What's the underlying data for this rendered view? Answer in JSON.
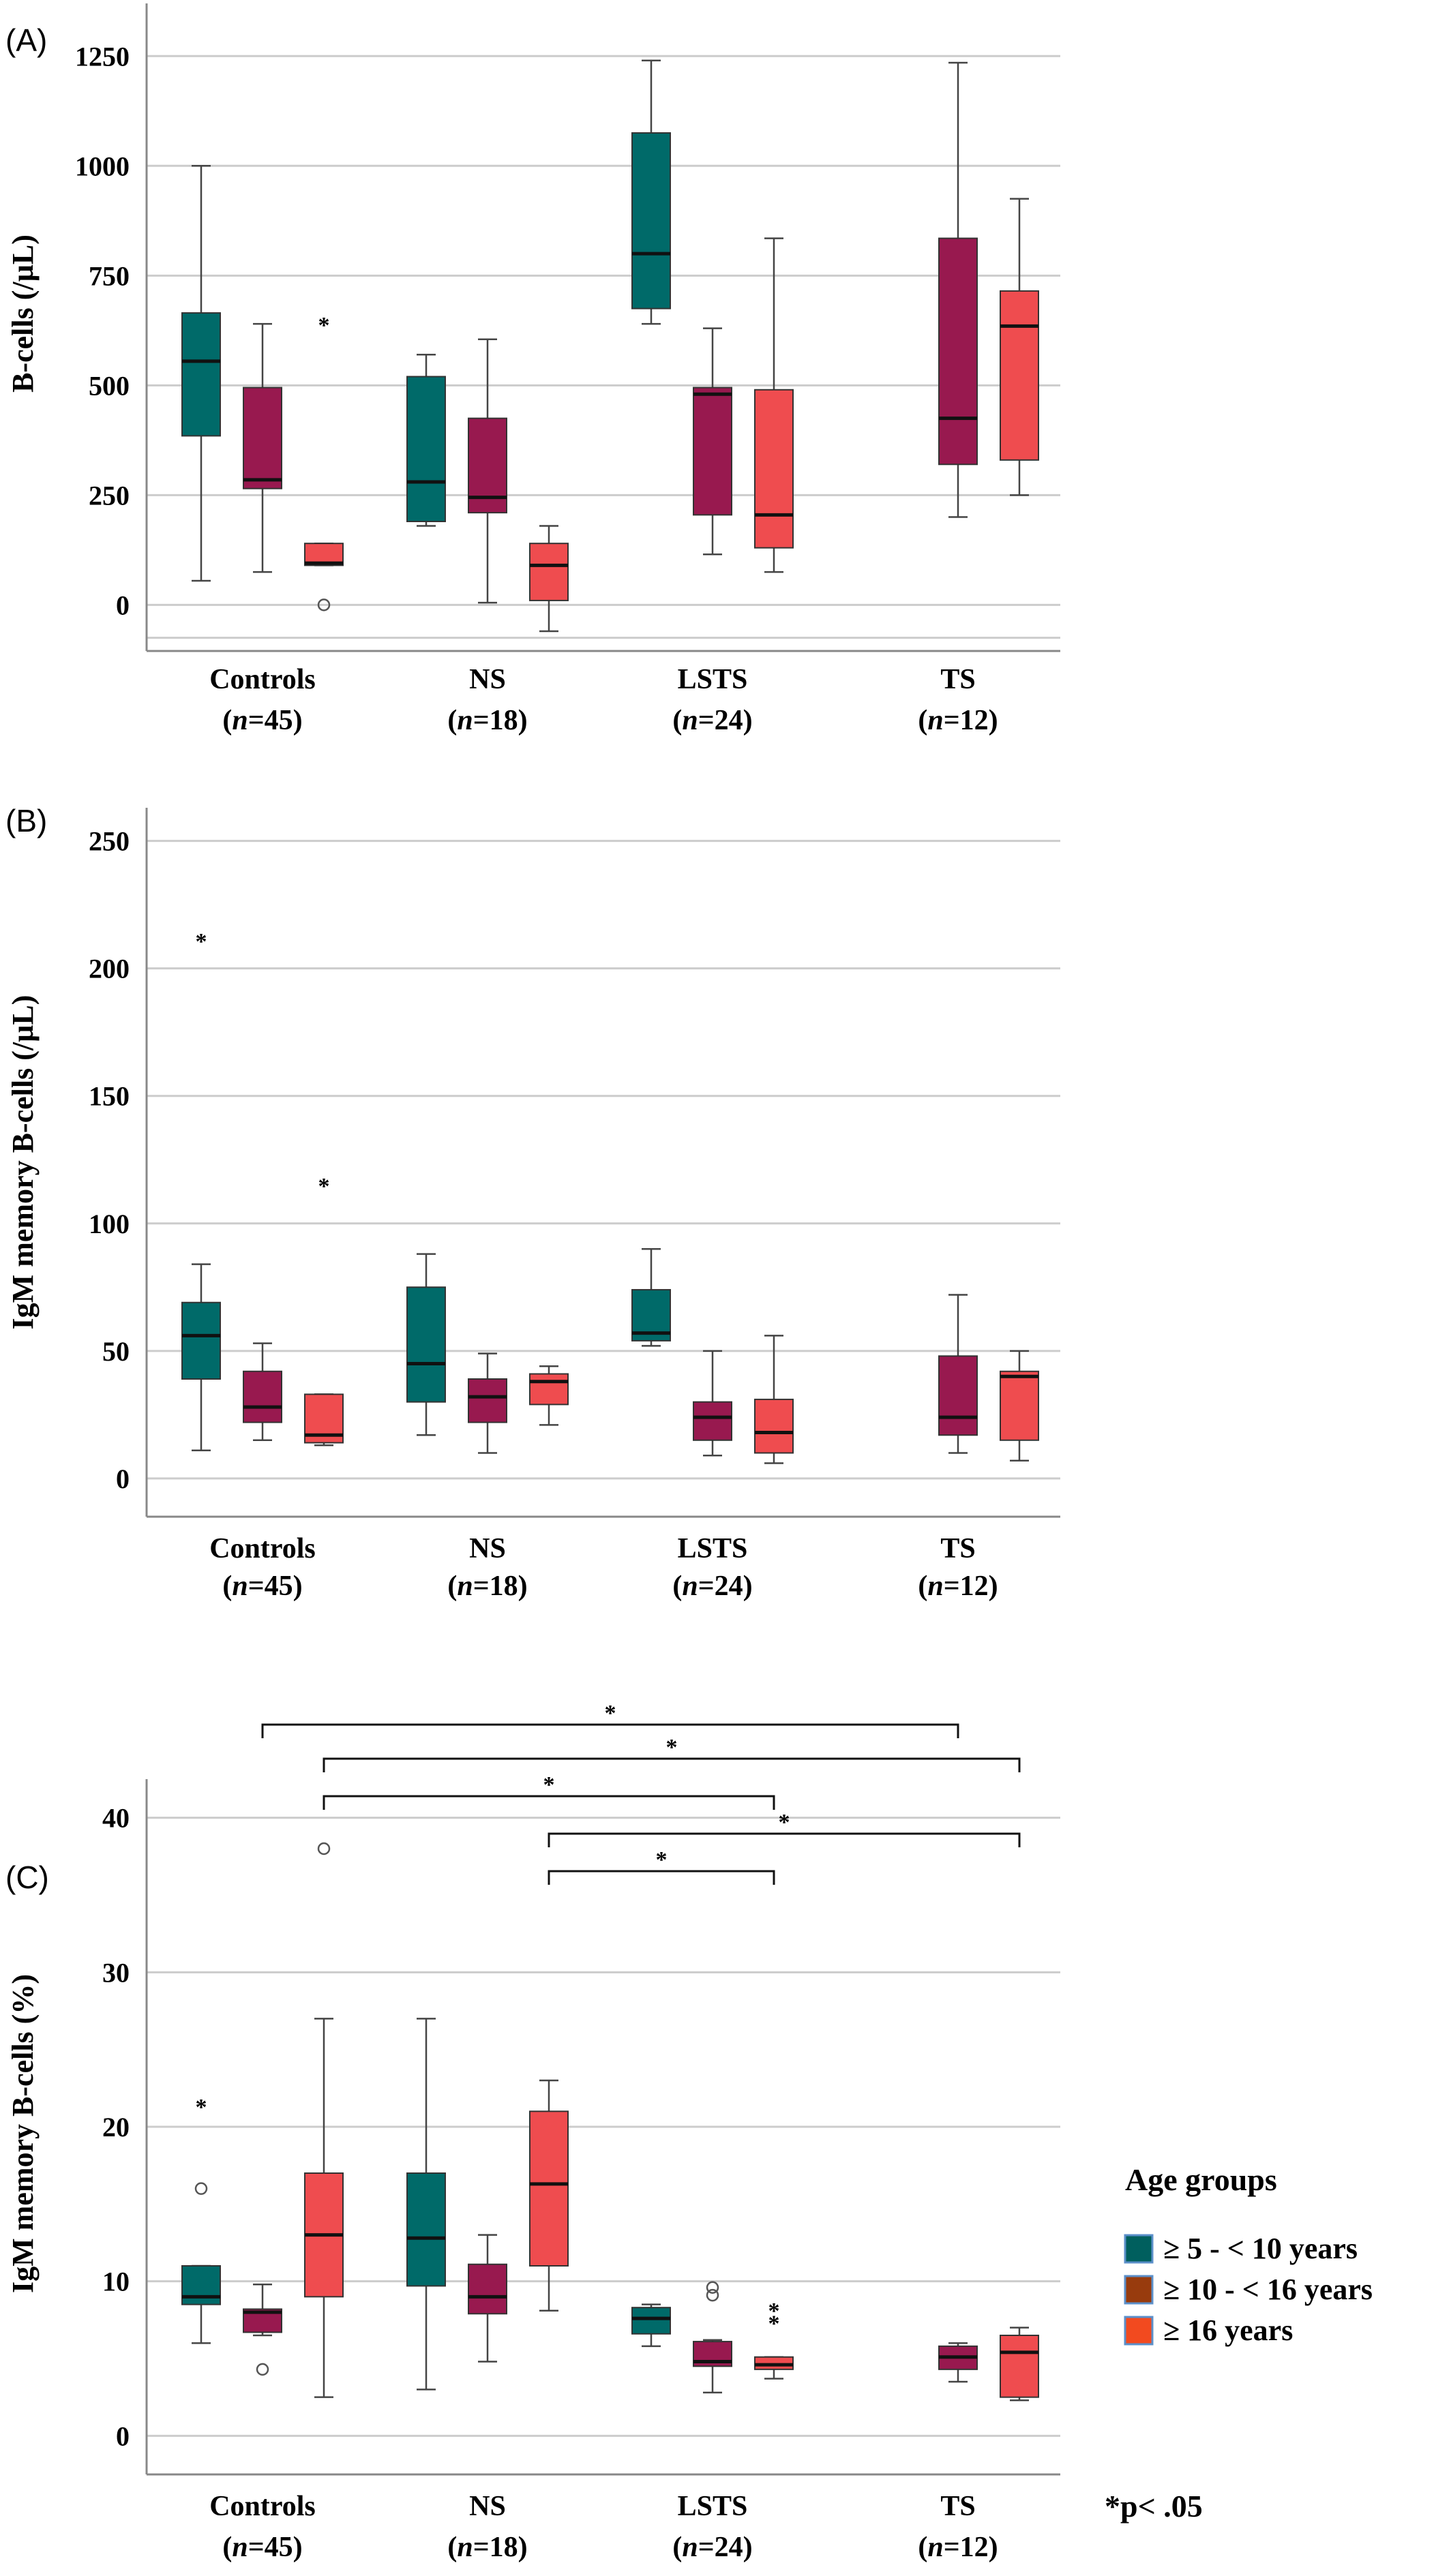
{
  "chart_data": [
    {
      "type": "box",
      "panel_label": "(A)",
      "ylabel": "B-cells (/µL)",
      "yticks": [
        0,
        250,
        500,
        750,
        1000,
        1250
      ],
      "ylim": [
        -105,
        1370
      ],
      "categories": [
        "Controls",
        "NS",
        "LSTS",
        "TS"
      ],
      "category_n": [
        "45",
        "18",
        "24",
        "12"
      ],
      "series": [
        {
          "boxes": [
            {
              "min": 55,
              "q1": 385,
              "median": 555,
              "q3": 665,
              "max": 1000
            },
            {
              "min": 180,
              "q1": 190,
              "median": 280,
              "q3": 520,
              "max": 570
            },
            {
              "min": 640,
              "q1": 675,
              "median": 800,
              "q3": 1075,
              "max": 1240
            },
            null
          ]
        },
        {
          "boxes": [
            {
              "min": 75,
              "q1": 265,
              "median": 285,
              "q3": 495,
              "max": 640
            },
            {
              "min": 5,
              "q1": 210,
              "median": 245,
              "q3": 425,
              "max": 605
            },
            {
              "min": 115,
              "q1": 205,
              "median": 480,
              "q3": 495,
              "max": 630
            },
            {
              "min": 200,
              "q1": 320,
              "median": 425,
              "q3": 835,
              "max": 1235
            }
          ]
        },
        {
          "boxes": [
            {
              "min": 90,
              "q1": 90,
              "median": 95,
              "q3": 140,
              "max": 140
            },
            {
              "min": -60,
              "q1": 10,
              "median": 90,
              "q3": 140,
              "max": 180
            },
            {
              "min": 75,
              "q1": 130,
              "median": 205,
              "q3": 490,
              "max": 835
            },
            {
              "min": 250,
              "q1": 330,
              "median": 635,
              "q3": 715,
              "max": 925
            }
          ]
        }
      ],
      "outliers": [
        {
          "category": 0,
          "series": 2,
          "value": 0,
          "marker": "circle"
        },
        {
          "category": 0,
          "series": 2,
          "value": 645,
          "marker": "star"
        }
      ]
    },
    {
      "type": "box",
      "panel_label": "(B)",
      "ylabel": "IgM memory B-cells (/µL)",
      "yticks": [
        0,
        50,
        100,
        150,
        200,
        250
      ],
      "ylim": [
        -15,
        263
      ],
      "categories": [
        "Controls",
        "NS",
        "LSTS",
        "TS"
      ],
      "category_n": [
        "45",
        "18",
        "24",
        "12"
      ],
      "series": [
        {
          "boxes": [
            {
              "min": 11,
              "q1": 39,
              "median": 56,
              "q3": 69,
              "max": 84
            },
            {
              "min": 17,
              "q1": 30,
              "median": 45,
              "q3": 75,
              "max": 88
            },
            {
              "min": 52,
              "q1": 54,
              "median": 57,
              "q3": 74,
              "max": 90
            },
            null
          ]
        },
        {
          "boxes": [
            {
              "min": 15,
              "q1": 22,
              "median": 28,
              "q3": 42,
              "max": 53
            },
            {
              "min": 10,
              "q1": 22,
              "median": 32,
              "q3": 39,
              "max": 49
            },
            {
              "min": 9,
              "q1": 15,
              "median": 24,
              "q3": 30,
              "max": 50
            },
            {
              "min": 10,
              "q1": 17,
              "median": 24,
              "q3": 48,
              "max": 72
            }
          ]
        },
        {
          "boxes": [
            {
              "min": 13,
              "q1": 14,
              "median": 17,
              "q3": 33,
              "max": 33
            },
            {
              "min": 21,
              "q1": 29,
              "median": 38,
              "q3": 41,
              "max": 44
            },
            {
              "min": 6,
              "q1": 10,
              "median": 18,
              "q3": 31,
              "max": 56
            },
            {
              "min": 7,
              "q1": 15,
              "median": 40,
              "q3": 42,
              "max": 50
            }
          ]
        }
      ],
      "outliers": [
        {
          "category": 0,
          "series": 0,
          "value": 212,
          "marker": "star"
        },
        {
          "category": 0,
          "series": 2,
          "value": 116,
          "marker": "star"
        }
      ]
    },
    {
      "type": "box",
      "panel_label": "(C)",
      "ylabel": "IgM memory B-cells (%)",
      "yticks": [
        0,
        10,
        20,
        30,
        40
      ],
      "ylim": [
        -2.5,
        42.5
      ],
      "categories": [
        "Controls",
        "NS",
        "LSTS",
        "TS"
      ],
      "category_n": [
        "45",
        "18",
        "24",
        "12"
      ],
      "series": [
        {
          "boxes": [
            {
              "min": 6,
              "q1": 8.5,
              "median": 9,
              "q3": 11,
              "max": 11
            },
            {
              "min": 3,
              "q1": 9.7,
              "median": 12.8,
              "q3": 17,
              "max": 27
            },
            {
              "min": 5.8,
              "q1": 6.6,
              "median": 7.6,
              "q3": 8.3,
              "max": 8.5
            },
            null
          ]
        },
        {
          "boxes": [
            {
              "min": 6.5,
              "q1": 6.7,
              "median": 8,
              "q3": 8.2,
              "max": 9.8
            },
            {
              "min": 4.8,
              "q1": 7.9,
              "median": 9,
              "q3": 11.1,
              "max": 13
            },
            {
              "min": 2.8,
              "q1": 4.5,
              "median": 4.8,
              "q3": 6.1,
              "max": 6.2
            },
            {
              "min": 3.5,
              "q1": 4.3,
              "median": 5.1,
              "q3": 5.8,
              "max": 6
            }
          ]
        },
        {
          "boxes": [
            {
              "min": 2.5,
              "q1": 9,
              "median": 13,
              "q3": 17,
              "max": 27
            },
            {
              "min": 8.1,
              "q1": 11,
              "median": 16.3,
              "q3": 21,
              "max": 23
            },
            {
              "min": 3.7,
              "q1": 4.3,
              "median": 4.6,
              "q3": 5.1,
              "max": 5.1
            },
            {
              "min": 2.3,
              "q1": 2.5,
              "median": 5.4,
              "q3": 6.5,
              "max": 7
            }
          ]
        }
      ],
      "outliers": [
        {
          "category": 0,
          "series": 0,
          "value": 21.5,
          "marker": "star"
        },
        {
          "category": 0,
          "series": 0,
          "value": 16,
          "marker": "circle"
        },
        {
          "category": 0,
          "series": 1,
          "value": 4.3,
          "marker": "circle"
        },
        {
          "category": 0,
          "series": 2,
          "value": 38,
          "marker": "circle"
        },
        {
          "category": 2,
          "series": 1,
          "value": 9.6,
          "marker": "circle"
        },
        {
          "category": 2,
          "series": 1,
          "value": 9.1,
          "marker": "circle"
        },
        {
          "category": 2,
          "series": 2,
          "value": 8.3,
          "marker": "star"
        },
        {
          "category": 2,
          "series": 2,
          "value": 7.5,
          "marker": "star"
        }
      ],
      "significance": [
        {
          "from_category": 0,
          "from_series": 1,
          "to_category": 3,
          "to_series": 1,
          "label": "*"
        },
        {
          "from_category": 0,
          "from_series": 2,
          "to_category": 3,
          "to_series": 2,
          "label": "*"
        },
        {
          "from_category": 0,
          "from_series": 2,
          "to_category": 2,
          "to_series": 2,
          "label": "*"
        },
        {
          "from_category": 1,
          "from_series": 2,
          "to_category": 3,
          "to_series": 2,
          "label": "*"
        },
        {
          "from_category": 1,
          "from_series": 2,
          "to_category": 2,
          "to_series": 2,
          "label": "*"
        }
      ]
    }
  ],
  "legend": {
    "title": "Age groups",
    "placement": "right",
    "items": [
      {
        "label": "≥ 5 - < 10 years",
        "color": "#005f5e"
      },
      {
        "label": "≥ 10 - < 16 years",
        "color": "#983b0d"
      },
      {
        "label": "≥ 16 years",
        "color": "#f24a1f"
      }
    ]
  },
  "series_colors": [
    "#006a69",
    "#98194f",
    "#ef4c4f"
  ],
  "significance_note": "*p< .05",
  "colors": {
    "grid": "#cccccc",
    "axis": "#888888",
    "whisker": "#444444"
  }
}
